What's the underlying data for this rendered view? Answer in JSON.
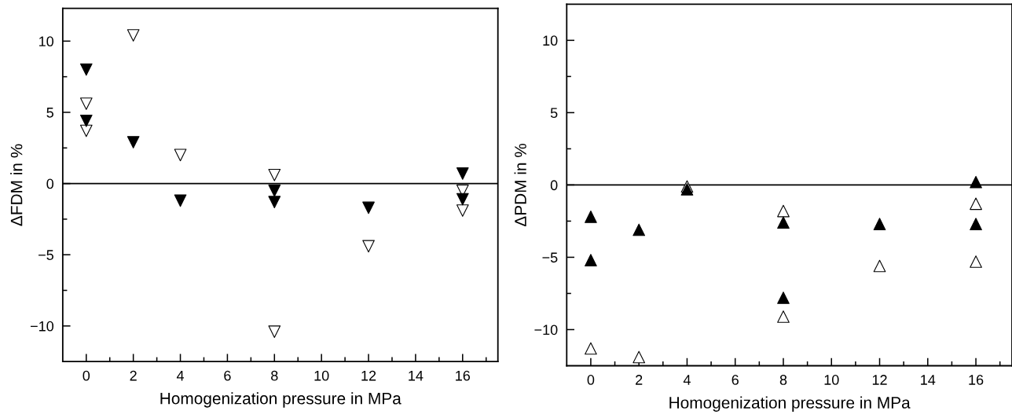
{
  "chart_data": [
    {
      "type": "scatter",
      "xlabel": "Homogenization pressure in MPa",
      "ylabel": "ΔFDM in %",
      "xlim": [
        -1,
        17.5
      ],
      "ylim": [
        -12.5,
        12.3
      ],
      "xticks": [
        0,
        {
          "value": 1,
          "label": null
        },
        2,
        {
          "value": 3,
          "label": null
        },
        4,
        {
          "value": 5,
          "label": null
        },
        6,
        {
          "value": 7,
          "label": null
        },
        8,
        {
          "value": 9,
          "label": null
        },
        10,
        {
          "value": 11,
          "label": null
        },
        12,
        {
          "value": 13,
          "label": null
        },
        14,
        {
          "value": 15,
          "label": null
        },
        16,
        {
          "value": 17,
          "label": null
        }
      ],
      "yticks": [
        {
          "value": -10,
          "label": "−10"
        },
        {
          "value": -7.5,
          "label": null
        },
        {
          "value": -5,
          "label": "−5"
        },
        {
          "value": -2.5,
          "label": null
        },
        0,
        {
          "value": 2.5,
          "label": null
        },
        5,
        {
          "value": 7.5,
          "label": null
        },
        10
      ],
      "marker": "triangle_down",
      "grid": false,
      "legend": false,
      "ref_lines": [
        {
          "axis": "y",
          "value": 0,
          "color": "#000000"
        }
      ],
      "series": [
        {
          "color": "#000000",
          "x": [
            0,
            0,
            2,
            4,
            8,
            8,
            12,
            16,
            16
          ],
          "values": [
            8.0,
            4.4,
            2.9,
            -1.2,
            -0.5,
            -1.3,
            -1.7,
            0.7,
            -1.1
          ]
        },
        {
          "color": "#ffffff",
          "x": [
            0,
            0,
            2,
            4,
            8,
            8,
            12,
            16,
            16
          ],
          "values": [
            5.6,
            3.7,
            10.4,
            2.0,
            0.6,
            -10.4,
            -4.4,
            -0.5,
            -1.9
          ]
        }
      ]
    },
    {
      "type": "scatter",
      "xlabel": "Homogenization pressure in MPa",
      "ylabel": "ΔPDM in %",
      "xlim": [
        -1,
        17.5
      ],
      "ylim": [
        -12.5,
        12.5
      ],
      "xticks": [
        0,
        {
          "value": 1,
          "label": null
        },
        2,
        {
          "value": 3,
          "label": null
        },
        4,
        {
          "value": 5,
          "label": null
        },
        6,
        {
          "value": 7,
          "label": null
        },
        8,
        {
          "value": 9,
          "label": null
        },
        10,
        {
          "value": 11,
          "label": null
        },
        12,
        {
          "value": 13,
          "label": null
        },
        14,
        {
          "value": 15,
          "label": null
        },
        16,
        {
          "value": 17,
          "label": null
        }
      ],
      "yticks": [
        {
          "value": -10,
          "label": "−10"
        },
        {
          "value": -7.5,
          "label": null
        },
        {
          "value": -5,
          "label": "−5"
        },
        {
          "value": -2.5,
          "label": null
        },
        0,
        {
          "value": 2.5,
          "label": null
        },
        5,
        {
          "value": 7.5,
          "label": null
        },
        10
      ],
      "marker": "triangle",
      "grid": false,
      "legend": false,
      "ref_lines": [
        {
          "axis": "y",
          "value": 0,
          "color": "#000000"
        }
      ],
      "series": [
        {
          "color": "#000000",
          "x": [
            0,
            0,
            2,
            4,
            8,
            8,
            12,
            16,
            16
          ],
          "values": [
            -2.2,
            -5.2,
            -3.1,
            -0.3,
            -2.6,
            -7.8,
            -2.7,
            0.2,
            -2.7
          ]
        },
        {
          "color": "#ffffff",
          "x": [
            0,
            2,
            4,
            8,
            8,
            12,
            16,
            16
          ],
          "values": [
            -11.3,
            -11.9,
            -0.1,
            -1.8,
            -9.1,
            -5.6,
            -1.3,
            -5.3
          ]
        }
      ]
    }
  ]
}
